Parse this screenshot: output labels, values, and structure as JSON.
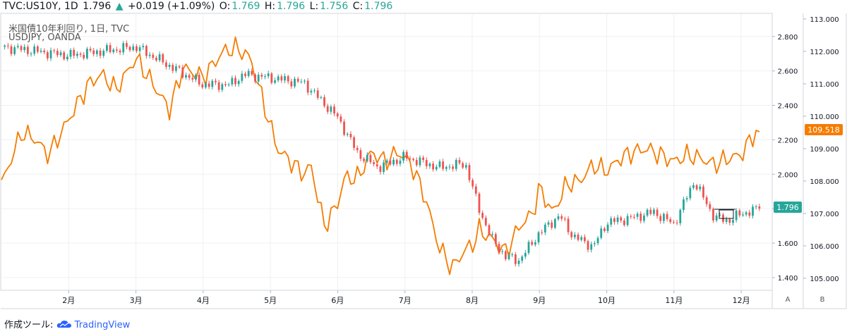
{
  "header": {
    "symbol": "TVC:US10Y, 1D",
    "last": "1.796",
    "arrow": "▲",
    "change": "+0.019 (+1.09%)",
    "o_label": "O:",
    "o_val": "1.769",
    "h_label": "H:",
    "h_val": "1.796",
    "l_label": "L:",
    "l_val": "1.756",
    "c_label": "C:",
    "c_val": "1.796"
  },
  "legend": {
    "line1": "米国債10年利回り, 1日, TVC",
    "line2": "USDJPY, OANDA"
  },
  "footer": {
    "made_with": "作成ツール:",
    "brand": "TradingView"
  },
  "axis_buttons": {
    "a": "A",
    "b": "B"
  },
  "colors": {
    "up": "#26a69a",
    "down": "#ef5350",
    "usdjpy": "#f57c00",
    "grid": "#eef0f3",
    "text": "#131722"
  },
  "chart_data": {
    "type": "line",
    "title": "米国債10年利回り vs USDJPY",
    "x_tick_labels": [
      "2月",
      "3月",
      "4月",
      "5月",
      "6月",
      "7月",
      "8月",
      "9月",
      "10月",
      "11月",
      "12月"
    ],
    "x_tick_months": [
      1,
      2,
      3,
      4,
      5,
      6,
      7,
      8,
      9,
      10,
      11
    ],
    "x_range_months": [
      0.0,
      11.45
    ],
    "y_left": {
      "ticks": [
        "2.800",
        "2.600",
        "2.400",
        "2.200",
        "2.000",
        "1.800",
        "1.600",
        "1.400"
      ],
      "range": [
        1.33,
        2.93
      ],
      "last_label": "1.796"
    },
    "y_right": {
      "ticks": [
        "113.000",
        "112.000",
        "111.000",
        "110.000",
        "109.000",
        "108.000",
        "107.000",
        "106.000",
        "105.000"
      ],
      "range": [
        104.65,
        113.15
      ],
      "last_label": "109.518"
    },
    "series": [
      {
        "name": "US10Y",
        "style": "candlestick",
        "x_months": [
          0.0,
          1.0,
          2.0,
          2.5,
          3.0,
          3.4,
          3.6,
          4.0,
          4.5,
          5.0,
          5.3,
          5.6,
          6.0,
          6.5,
          6.9,
          7.1,
          7.3,
          7.5,
          7.7,
          8.0,
          8.3,
          8.5,
          8.8,
          9.0,
          9.3,
          9.7,
          10.0,
          10.3,
          10.6,
          10.8,
          11.0,
          11.27
        ],
        "values": [
          2.74,
          2.69,
          2.74,
          2.63,
          2.52,
          2.52,
          2.58,
          2.56,
          2.53,
          2.33,
          2.12,
          2.04,
          2.1,
          2.04,
          2.06,
          1.8,
          1.62,
          1.52,
          1.5,
          1.66,
          1.76,
          1.64,
          1.58,
          1.72,
          1.74,
          1.78,
          1.71,
          1.96,
          1.75,
          1.73,
          1.77,
          1.8
        ]
      },
      {
        "name": "USDJPY",
        "style": "line",
        "x_months": [
          0.0,
          0.3,
          0.5,
          0.7,
          1.0,
          1.3,
          1.5,
          1.7,
          2.0,
          2.5,
          2.7,
          3.0,
          3.3,
          3.5,
          3.7,
          3.9,
          4.1,
          4.3,
          4.5,
          4.6,
          4.8,
          5.0,
          5.1,
          5.3,
          5.5,
          5.7,
          5.9,
          6.1,
          6.3,
          6.5,
          6.7,
          6.9,
          7.0,
          7.1,
          7.3,
          7.5,
          7.7,
          7.9,
          8.0,
          8.2,
          8.4,
          8.6,
          8.8,
          9.0,
          9.2,
          9.4,
          9.6,
          9.8,
          10.0,
          10.2,
          10.4,
          10.6,
          10.8,
          11.0,
          11.2,
          11.27
        ],
        "values": [
          107.9,
          109.5,
          109.3,
          108.8,
          109.9,
          111.0,
          111.3,
          110.8,
          111.8,
          110.2,
          111.5,
          111.2,
          112.0,
          112.1,
          111.8,
          110.4,
          109.0,
          108.6,
          108.2,
          108.5,
          106.6,
          107.3,
          108.1,
          108.1,
          108.9,
          108.6,
          108.9,
          108.5,
          107.5,
          106.0,
          105.3,
          105.9,
          106.0,
          106.5,
          106.2,
          105.8,
          106.6,
          107.0,
          107.8,
          107.0,
          107.9,
          108.0,
          108.5,
          108.3,
          108.7,
          108.9,
          109.0,
          108.8,
          108.6,
          108.8,
          108.7,
          108.5,
          108.7,
          108.8,
          109.5,
          109.52
        ]
      }
    ]
  }
}
